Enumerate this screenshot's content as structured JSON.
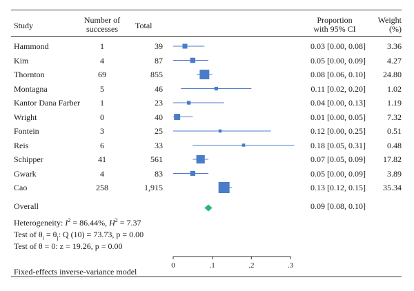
{
  "header": {
    "study": "Study",
    "successes_line1": "Number of",
    "successes_line2": "successes",
    "total": "Total",
    "prop_line1": "Proportion",
    "prop_line2": "with 95% CI",
    "weight_line1": "Weight",
    "weight_line2": "(%)"
  },
  "rows": [
    {
      "study": "Hammond",
      "successes": "1",
      "total": "39",
      "ci_text": "0.03 [0.00, 0.08]",
      "weight": "3.36"
    },
    {
      "study": "Kim",
      "successes": "4",
      "total": "87",
      "ci_text": "0.05 [0.00, 0.09]",
      "weight": "4.27"
    },
    {
      "study": "Thornton",
      "successes": "69",
      "total": "855",
      "ci_text": "0.08 [0.06, 0.10]",
      "weight": "24.80"
    },
    {
      "study": "Montagna",
      "successes": "5",
      "total": "46",
      "ci_text": "0.11 [0.02, 0.20]",
      "weight": "1.02"
    },
    {
      "study": "Kantor Dana Farber",
      "successes": "1",
      "total": "23",
      "ci_text": "0.04 [0.00, 0.13]",
      "weight": "1.19"
    },
    {
      "study": "Wright",
      "successes": "0",
      "total": "40",
      "ci_text": "0.01 [0.00, 0.05]",
      "weight": "7.32"
    },
    {
      "study": "Fontein",
      "successes": "3",
      "total": "25",
      "ci_text": "0.12 [0.00, 0.25]",
      "weight": "0.51"
    },
    {
      "study": "Reis",
      "successes": "6",
      "total": "33",
      "ci_text": "0.18 [0.05, 0.31]",
      "weight": "0.48"
    },
    {
      "study": "Schipper",
      "successes": "41",
      "total": "561",
      "ci_text": "0.07 [0.05, 0.09]",
      "weight": "17.82"
    },
    {
      "study": "Gwark",
      "successes": "4",
      "total": "83",
      "ci_text": "0.05 [0.00, 0.09]",
      "weight": "3.89"
    },
    {
      "study": "Cao",
      "successes": "258",
      "total": "1,915",
      "ci_text": "0.13 [0.12, 0.15]",
      "weight": "35.34"
    }
  ],
  "overall": {
    "label": "Overall",
    "ci_text": "0.09 [0.08, 0.10]"
  },
  "heterogeneity": {
    "line1_prefix": "Heterogeneity: ",
    "i2_symbol": "I",
    "i2_sup": "2",
    "i2_value": " = 86.44%, ",
    "h2_symbol": "H",
    "h2_sup": "2",
    "h2_value": " = 7.37",
    "line2_prefix": "Test of θ",
    "line2_sub_i": "i",
    "line2_mid": " = θ",
    "line2_sub_j": "j",
    "line2_rest": ": Q (10) = 73.73, p = 0.00",
    "line3": "Test of θ = 0: z = 19.26, p = 0.00"
  },
  "footer": "Fixed-effects inverse-variance model",
  "chart_data": {
    "type": "forest",
    "x_ticks": [
      0,
      0.1,
      0.2,
      0.3
    ],
    "x_tick_labels": [
      "0",
      ".1",
      ".2",
      ".3"
    ],
    "xlim": [
      0,
      0.3
    ],
    "color_study": "#4a7cc9",
    "color_overall": "#2bb573",
    "studies": [
      {
        "name": "Hammond",
        "estimate": 0.03,
        "lower": 0.0,
        "upper": 0.08,
        "weight": 3.36
      },
      {
        "name": "Kim",
        "estimate": 0.05,
        "lower": 0.0,
        "upper": 0.09,
        "weight": 4.27
      },
      {
        "name": "Thornton",
        "estimate": 0.08,
        "lower": 0.06,
        "upper": 0.1,
        "weight": 24.8
      },
      {
        "name": "Montagna",
        "estimate": 0.11,
        "lower": 0.02,
        "upper": 0.2,
        "weight": 1.02
      },
      {
        "name": "Kantor Dana Farber",
        "estimate": 0.04,
        "lower": 0.0,
        "upper": 0.13,
        "weight": 1.19
      },
      {
        "name": "Wright",
        "estimate": 0.01,
        "lower": 0.0,
        "upper": 0.05,
        "weight": 7.32
      },
      {
        "name": "Fontein",
        "estimate": 0.12,
        "lower": 0.0,
        "upper": 0.25,
        "weight": 0.51
      },
      {
        "name": "Reis",
        "estimate": 0.18,
        "lower": 0.05,
        "upper": 0.31,
        "weight": 0.48
      },
      {
        "name": "Schipper",
        "estimate": 0.07,
        "lower": 0.05,
        "upper": 0.09,
        "weight": 17.82
      },
      {
        "name": "Gwark",
        "estimate": 0.05,
        "lower": 0.0,
        "upper": 0.09,
        "weight": 3.89
      },
      {
        "name": "Cao",
        "estimate": 0.13,
        "lower": 0.12,
        "upper": 0.15,
        "weight": 35.34
      }
    ],
    "overall": {
      "estimate": 0.09,
      "lower": 0.08,
      "upper": 0.1
    }
  }
}
